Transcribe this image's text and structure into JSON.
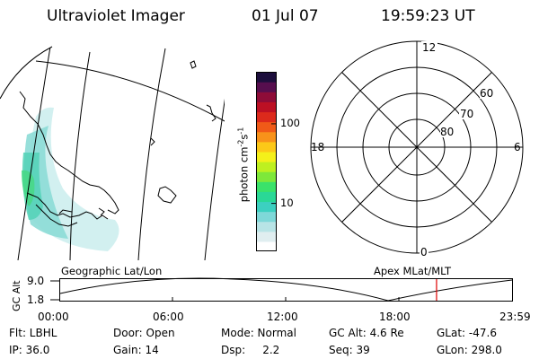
{
  "header": {
    "title": "Ultraviolet Imager",
    "date": "01 Jul 07",
    "time": "19:59:23 UT"
  },
  "colorbar": {
    "unit_prefix": "photon cm",
    "unit_exp1": "-2",
    "unit_mid": "s",
    "unit_exp2": "-1",
    "ticks": [
      {
        "label": "100",
        "value": 100
      },
      {
        "label": "10",
        "value": 10
      }
    ],
    "range": [
      2.5,
      450
    ],
    "colors": [
      "#ffffff",
      "#e0eef0",
      "#b8e4e6",
      "#7ed8d8",
      "#3cd0c0",
      "#2ad896",
      "#3ae26a",
      "#7ee83a",
      "#bef020",
      "#f4f01a",
      "#fcc818",
      "#f8921a",
      "#f05a18",
      "#dc2a1c",
      "#bc1024",
      "#8e0c38",
      "#560e4e",
      "#1c0e3c"
    ]
  },
  "map": {
    "title": "Geographic Lat/Lon"
  },
  "polar": {
    "title": "Apex MLat/MLT",
    "mlt_labels": {
      "top": "12",
      "bottom": "0",
      "left": "18",
      "right": "6"
    },
    "lat_labels": [
      "60",
      "70",
      "80"
    ]
  },
  "altitude_plot": {
    "ylabel": "GC Alt",
    "y_ticks": [
      "9.0",
      "1.8"
    ],
    "y_range": [
      1.8,
      9.0
    ],
    "x_ticks": [
      "00:00",
      "06:00",
      "12:00",
      "18:00",
      "23:59"
    ],
    "current_time_hours": 19.99
  },
  "footer": {
    "flt": "Flt: LBHL",
    "ip": "IP: 36.0",
    "door": "Door: Open",
    "gain": "Gain: 14",
    "mode": "Mode: Normal",
    "dsp": "Dsp:     2.2",
    "gc_alt": "GC Alt: 4.6 Re",
    "seq": "Seq: 39",
    "glat": "GLat: -47.6",
    "glon": "GLon: 298.0"
  },
  "accent": {
    "marker": "#dd0000"
  }
}
